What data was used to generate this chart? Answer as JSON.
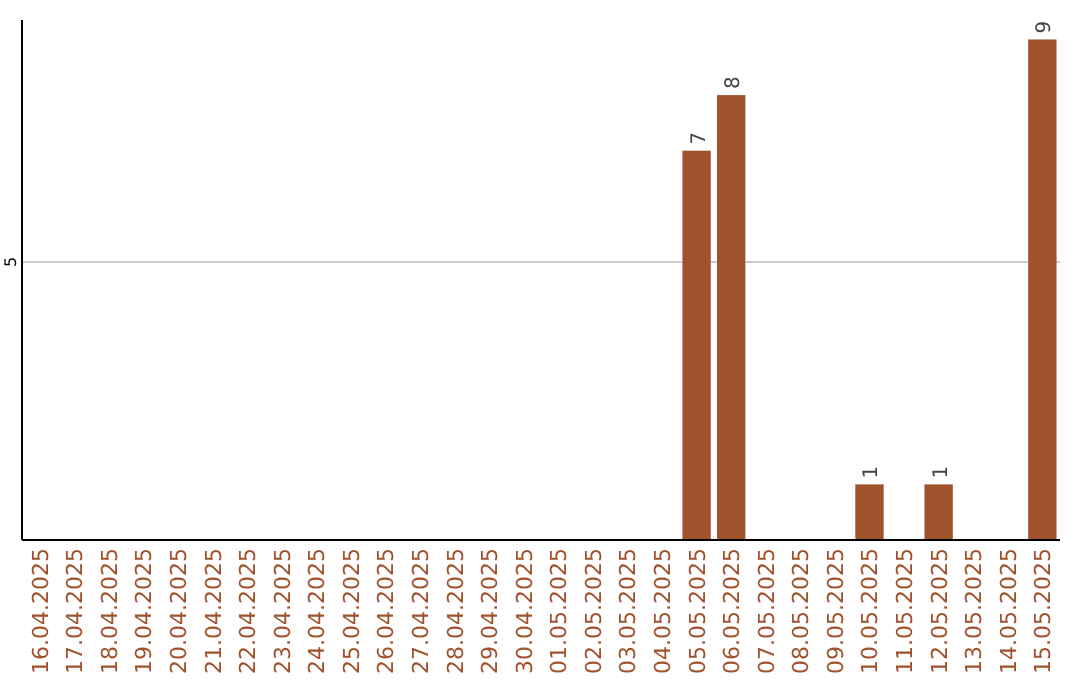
{
  "chart_data": {
    "type": "bar",
    "categories": [
      "16.04.2025",
      "17.04.2025",
      "18.04.2025",
      "19.04.2025",
      "20.04.2025",
      "21.04.2025",
      "22.04.2025",
      "23.04.2025",
      "24.04.2025",
      "25.04.2025",
      "26.04.2025",
      "27.04.2025",
      "28.04.2025",
      "29.04.2025",
      "30.04.2025",
      "01.05.2025",
      "02.05.2025",
      "03.05.2025",
      "04.05.2025",
      "05.05.2025",
      "06.05.2025",
      "07.05.2025",
      "08.05.2025",
      "09.05.2025",
      "10.05.2025",
      "11.05.2025",
      "12.05.2025",
      "13.05.2025",
      "14.05.2025",
      "15.05.2025"
    ],
    "values": [
      null,
      null,
      null,
      null,
      null,
      null,
      null,
      null,
      null,
      null,
      null,
      null,
      null,
      null,
      null,
      null,
      null,
      null,
      null,
      7,
      8,
      null,
      null,
      null,
      1,
      null,
      1,
      null,
      null,
      9
    ],
    "data_labels": true,
    "color": "#a0522d",
    "ylim": [
      0,
      9.35
    ],
    "yticks": [
      5
    ],
    "grid": "y"
  }
}
